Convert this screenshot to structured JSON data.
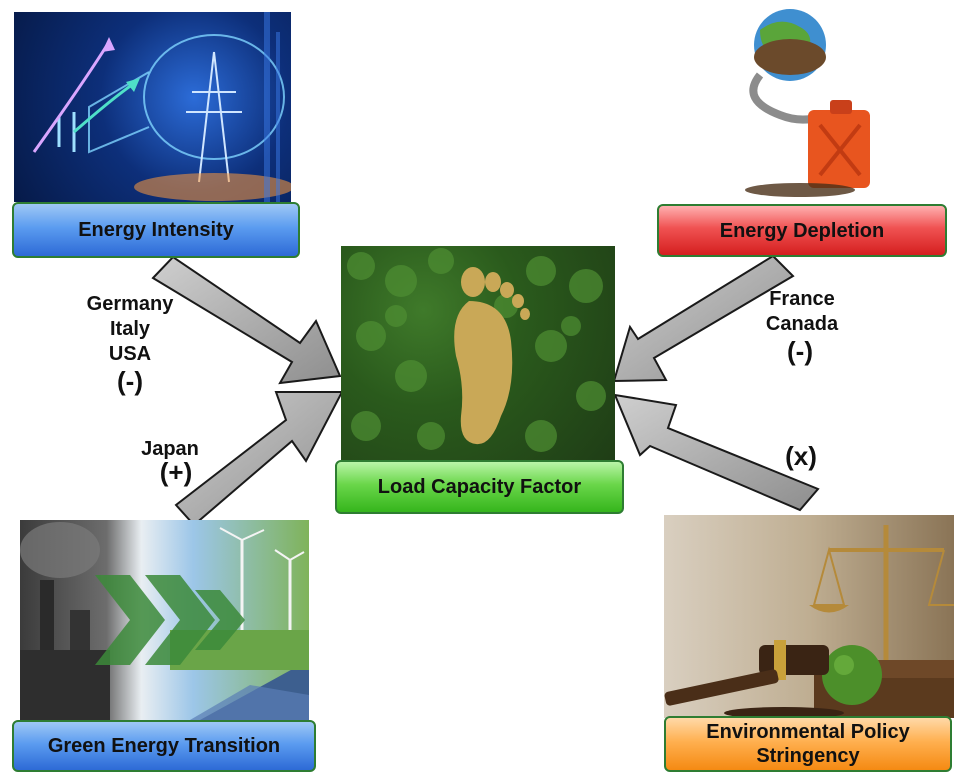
{
  "nodes": {
    "center": {
      "label": "Load Capacity Factor"
    },
    "energy_intensity": {
      "label": "Energy Intensity"
    },
    "energy_depletion": {
      "label": "Energy Depletion"
    },
    "green_energy_transition": {
      "label": "Green Energy Transition"
    },
    "environmental_policy_stringency": {
      "label_line1": "Environmental Policy",
      "label_line2": "Stringency"
    }
  },
  "edges": {
    "energy_intensity": {
      "countries": [
        "Germany",
        "Italy",
        "USA"
      ],
      "sign": "(-)"
    },
    "energy_depletion": {
      "countries": [
        "France",
        "Canada"
      ],
      "sign": "(-)"
    },
    "green_energy_transition": {
      "countries": [
        "Japan"
      ],
      "sign": "(+)"
    },
    "environmental_policy_stringency": {
      "countries": [],
      "sign": "(x)"
    }
  },
  "colors": {
    "arrow_fill": "#a9a9a9",
    "arrow_stroke": "#1a1a1a",
    "forest_dark": "#1f3d16",
    "footprint": "#c9a857"
  }
}
